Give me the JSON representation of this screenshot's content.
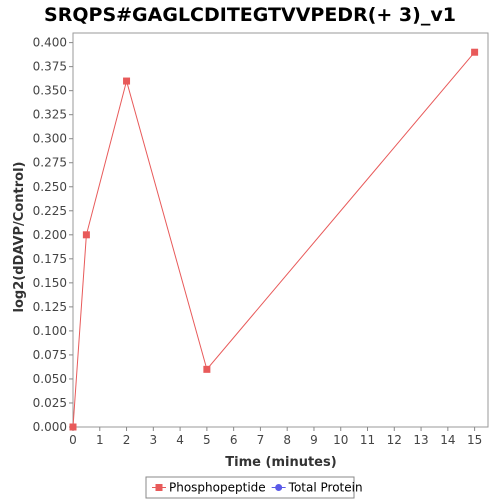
{
  "chart_data": {
    "type": "line",
    "title": "SRQPS#GAGLCDITEGTVVPEDR(+ 3)_v1",
    "xlabel": "Time (minutes)",
    "ylabel": "log2(dDAVP/Control)",
    "xlim": [
      0,
      15.5
    ],
    "ylim": [
      0,
      0.41
    ],
    "x_ticks": [
      0,
      1,
      2,
      3,
      4,
      5,
      6,
      7,
      8,
      9,
      10,
      11,
      12,
      13,
      14,
      15
    ],
    "y_ticks": [
      "0.000",
      "0.025",
      "0.050",
      "0.075",
      "0.100",
      "0.125",
      "0.150",
      "0.175",
      "0.200",
      "0.225",
      "0.250",
      "0.275",
      "0.300",
      "0.325",
      "0.350",
      "0.375",
      "0.400"
    ],
    "grid": false,
    "legend_position": "bottom",
    "series": [
      {
        "name": "Phosphopeptide",
        "color": "#e85a5a",
        "marker": "square",
        "x": [
          0,
          0.5,
          2,
          5,
          15
        ],
        "y": [
          0.0,
          0.2,
          0.36,
          0.06,
          0.39
        ]
      },
      {
        "name": "Total Protein",
        "color": "#5a5ae8",
        "marker": "circle",
        "x": [],
        "y": []
      }
    ]
  }
}
